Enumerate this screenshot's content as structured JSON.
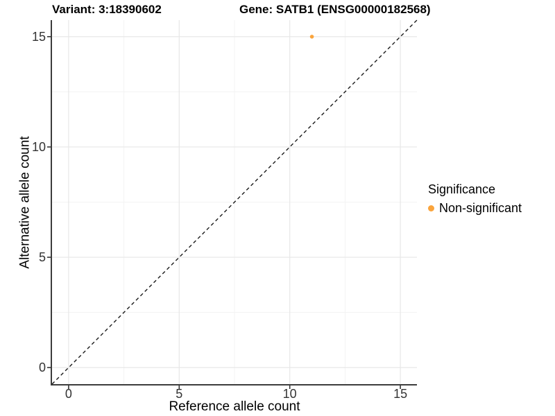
{
  "chart_data": {
    "type": "scatter",
    "title": "Variant: 3:18390602   Gene: SATB1 (ENSG00000182568)",
    "title_left": "Variant: 3:18390602",
    "title_right": "Gene: SATB1 (ENSG00000182568)",
    "xlabel": "Reference allele count",
    "ylabel": "Alternative allele count",
    "xlim": [
      -0.75,
      15.75
    ],
    "ylim": [
      -0.75,
      15.75
    ],
    "x_ticks": [
      0,
      5,
      10,
      15
    ],
    "y_ticks": [
      0,
      5,
      10,
      15
    ],
    "x_minor_ticks": [
      2.5,
      7.5,
      12.5
    ],
    "y_minor_ticks": [
      2.5,
      7.5,
      12.5
    ],
    "grid": true,
    "series": [
      {
        "name": "Non-significant",
        "color": "#FAA43C",
        "points": [
          {
            "x": 11,
            "y": 15
          }
        ]
      }
    ],
    "reference_line": {
      "style": "dashed",
      "description": "y = x identity line",
      "from": [
        -0.75,
        -0.75
      ],
      "to": [
        15.75,
        15.75
      ],
      "color": "#1A1A1A"
    },
    "legend": {
      "title": "Significance",
      "position": "right",
      "items": [
        {
          "label": "Non-significant",
          "color": "#FAA43C",
          "marker": "circle"
        }
      ]
    },
    "colors": {
      "background": "#FFFFFF",
      "grid_major": "#E7E7E7",
      "grid_minor": "#F3F3F3",
      "axis_line": "#3C3C3C",
      "tick_mark": "#333333",
      "tick_text": "#333333",
      "point": "#FAA43C"
    }
  }
}
